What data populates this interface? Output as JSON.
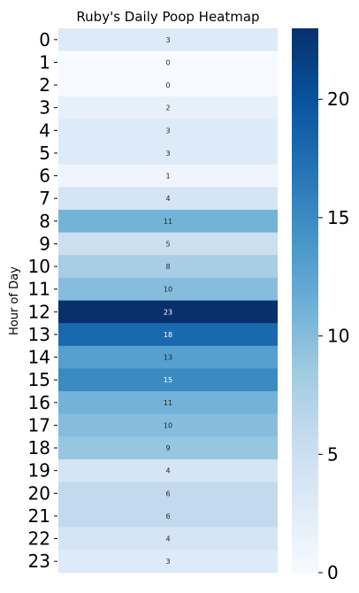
{
  "chart_data": {
    "type": "heatmap",
    "title": "Ruby's Daily Poop Heatmap",
    "ylabel": "Hour of Day",
    "xlabel": "",
    "rows": [
      "0",
      "1",
      "2",
      "3",
      "4",
      "5",
      "6",
      "7",
      "8",
      "9",
      "10",
      "11",
      "12",
      "13",
      "14",
      "15",
      "16",
      "17",
      "18",
      "19",
      "20",
      "21",
      "22",
      "23"
    ],
    "values": [
      3,
      0,
      0,
      2,
      3,
      3,
      1,
      4,
      11,
      5,
      8,
      10,
      23,
      18,
      13,
      15,
      11,
      10,
      9,
      4,
      6,
      6,
      4,
      3
    ],
    "colorbar": {
      "colormap": "Blues",
      "vmin": 0,
      "vmax": 23,
      "ticks": [
        0,
        5,
        10,
        15,
        20
      ],
      "tick_labels": [
        "0",
        "5",
        "10",
        "15",
        "20"
      ]
    },
    "annotations": "cell values shown"
  }
}
